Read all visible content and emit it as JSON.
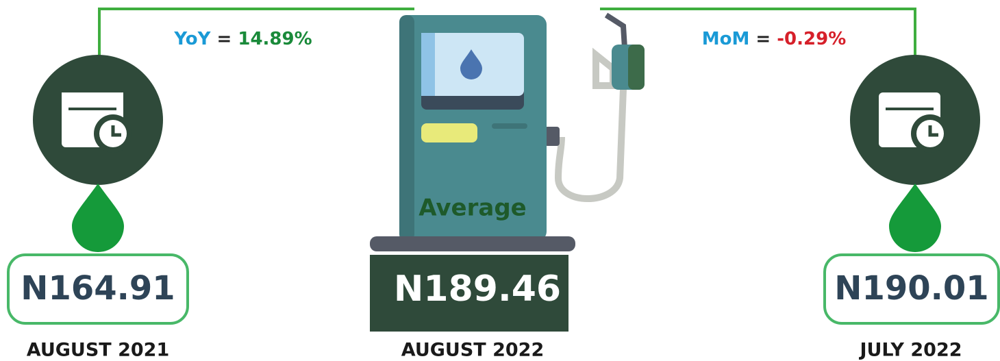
{
  "yoy": {
    "label": "YoY",
    "sign": "=",
    "value": "14.89%"
  },
  "mom": {
    "label": "MoM",
    "sign": "=",
    "value": "-0.29%"
  },
  "pump": {
    "label": "Average"
  },
  "periods": [
    {
      "price": "N164.91",
      "date": "AUGUST 2021"
    },
    {
      "price": "N189.46",
      "date": "AUGUST 2022"
    },
    {
      "price": "N190.01",
      "date": "JULY 2022"
    }
  ]
}
